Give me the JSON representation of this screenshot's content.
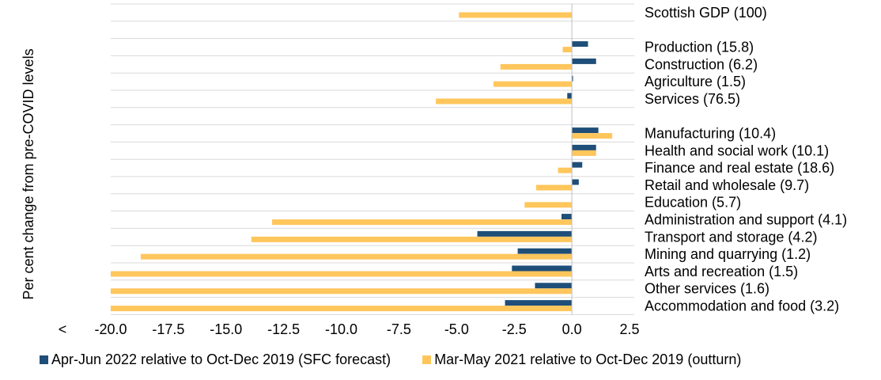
{
  "chart_data": {
    "type": "bar",
    "orientation": "horizontal",
    "ylabel": "Per cent change from pre-COVID levels",
    "xlim": [
      -20,
      2.5
    ],
    "xticks": [
      "-20.0",
      "-17.5",
      "-15.0",
      "-12.5",
      "-10.0",
      "-7.5",
      "-5.0",
      "-2.5",
      "0.0",
      "2.5"
    ],
    "x_overflow_marker": "<",
    "categories": [
      "Scottish GDP (100)",
      "",
      "Production (15.8)",
      "Construction (6.2)",
      "Agriculture (1.5)",
      "Services (76.5)",
      "",
      "Manufacturing (10.4)",
      "Health and social work (10.1)",
      "Finance and real estate (18.6)",
      "Retail and wholesale (9.7)",
      "Education (5.7)",
      "Administration and support (4.1)",
      "Transport and storage (4.2)",
      "Mining and quarrying (1.2)",
      "Arts and recreation (1.5)",
      "Other services (1.6)",
      "Accommodation and food (3.2)"
    ],
    "series": [
      {
        "name": "Apr-Jun 2022 relative to Oct-Dec 2019 (SFC forecast)",
        "color": "#1f4e79",
        "values": [
          0.0,
          null,
          0.7,
          1.05,
          0.05,
          -0.2,
          null,
          1.15,
          1.05,
          0.45,
          0.3,
          0.0,
          -0.45,
          -4.1,
          -2.35,
          -2.6,
          -1.6,
          -2.9
        ]
      },
      {
        "name": "Mar-May 2021 relative to Oct-Dec 2019 (outturn)",
        "color": "#ffc65c",
        "values": [
          -4.9,
          null,
          -0.4,
          -3.1,
          -3.4,
          -5.9,
          null,
          1.75,
          1.05,
          -0.6,
          -1.55,
          -2.05,
          -13.0,
          -13.9,
          -18.7,
          -20.0,
          -20.0,
          -20.0
        ]
      }
    ]
  }
}
